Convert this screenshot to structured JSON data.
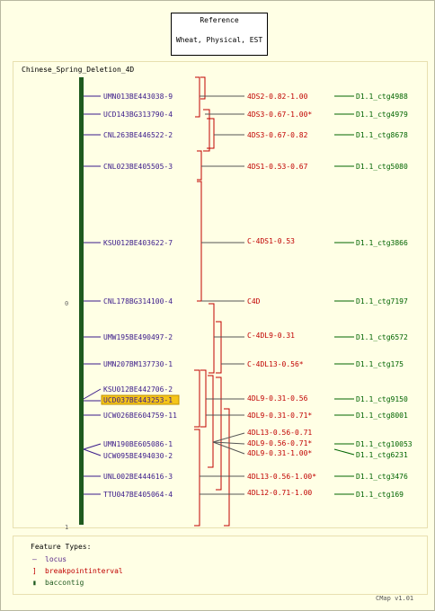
{
  "title_box": {
    "line1": "Reference",
    "line2": "Wheat, Physical, EST"
  },
  "map": {
    "name": "Chinese_Spring_Deletion_4D",
    "axis_top_label": "0",
    "axis_bottom_label": "1",
    "loci": [
      {
        "name": "UMN013BE443038-9"
      },
      {
        "name": "UCD143BG313790-4"
      },
      {
        "name": "CNL263BE446522-2"
      },
      {
        "name": "CNL023BE405505-3"
      },
      {
        "name": "KSU012BE403622-7"
      },
      {
        "name": "CNL178BG314100-4"
      },
      {
        "name": "UMW195BE490497-2"
      },
      {
        "name": "UMN207BM137730-1"
      },
      {
        "name": "KSU012BE442706-2"
      },
      {
        "name": "UCD037BE443253-1",
        "highlight": true
      },
      {
        "name": "UCW026BE604759-11"
      },
      {
        "name": "UMN190BE605086-1"
      },
      {
        "name": "UCW095BE494030-2"
      },
      {
        "name": "UNL002BE444616-3"
      },
      {
        "name": "TTU047BE405064-4"
      }
    ],
    "breakpoints": [
      {
        "label": "4DS2-0.82-1.00"
      },
      {
        "label": "4DS3-0.67-1.00*"
      },
      {
        "label": "4DS3-0.67-0.82"
      },
      {
        "label": "4DS1-0.53-0.67"
      },
      {
        "label": "C-4DS1-0.53"
      },
      {
        "label": "C4D"
      },
      {
        "label": "C-4DL9-0.31"
      },
      {
        "label": "C-4DL13-0.56*"
      },
      {
        "label": "4DL9-0.31-0.56"
      },
      {
        "label": "4DL9-0.31-0.71*"
      },
      {
        "label": "4DL13-0.56-0.71"
      },
      {
        "label": "4DL9-0.56-0.71*"
      },
      {
        "label": "4DL9-0.31-1.00*"
      },
      {
        "label": "4DL13-0.56-1.00*"
      },
      {
        "label": "4DL12-0.71-1.00"
      }
    ],
    "contigs": [
      {
        "label": "D1.1_ctg4988"
      },
      {
        "label": "D1.1_ctg4979"
      },
      {
        "label": "D1.1_ctg8678"
      },
      {
        "label": "D1.1_ctg5080"
      },
      {
        "label": "D1.1_ctg3866"
      },
      {
        "label": "D1.1_ctg7197"
      },
      {
        "label": "D1.1_ctg6572"
      },
      {
        "label": "D1.1_ctg175"
      },
      {
        "label": "D1.1_ctg9150"
      },
      {
        "label": "D1.1_ctg8001"
      },
      {
        "label": "D1.1_ctg10053"
      },
      {
        "label": "D1.1_ctg6231"
      },
      {
        "label": "D1.1_ctg3476"
      },
      {
        "label": "D1.1_ctg169"
      }
    ]
  },
  "legend": {
    "title": "Feature Types:",
    "items": [
      {
        "symbol": "—",
        "label": "locus",
        "color": "#5a2a8a"
      },
      {
        "symbol": "]",
        "label": "breakpointinterval",
        "color": "#c00000"
      },
      {
        "symbol": "▮",
        "label": "baccontig",
        "color": "#1f5a1f"
      }
    ]
  },
  "version": "CMap v1.01",
  "colors": {
    "locus": "#3a1a8a",
    "breakpoint": "#c00000",
    "contig": "#006400",
    "axis": "#1f5a1f",
    "highlight": "#f5c518"
  }
}
